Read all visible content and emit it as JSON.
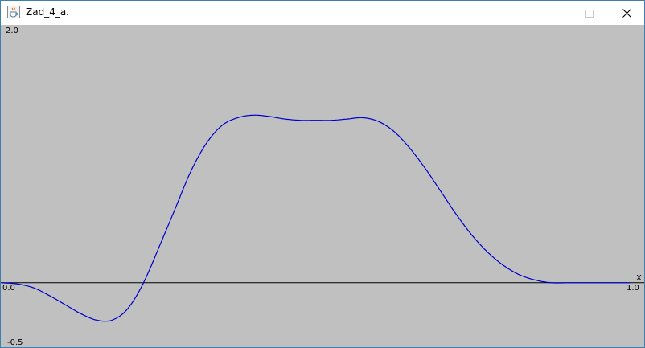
{
  "window": {
    "title": "Zad_4_a.",
    "icon": "java-cup-icon",
    "controls": [
      "minimize-icon",
      "maximize-icon",
      "close-icon"
    ]
  },
  "plot": {
    "background": "#c0c0c0",
    "axis_color": "#000000",
    "curve_color": "#0000cc",
    "labels": {
      "y_max": "2.0",
      "y_min": "-0.5",
      "x_min": "0.0",
      "x_max": "1.0",
      "x_axis": "X"
    }
  },
  "chart_data": {
    "type": "line",
    "xlim": [
      0.0,
      1.0
    ],
    "ylim": [
      -0.5,
      2.0
    ],
    "grid": false,
    "series": [
      {
        "x": [
          0.0,
          0.025,
          0.05,
          0.075,
          0.1,
          0.125,
          0.15,
          0.175,
          0.2,
          0.225,
          0.25,
          0.275,
          0.3,
          0.325,
          0.35,
          0.375,
          0.4,
          0.425,
          0.45,
          0.475,
          0.5,
          0.525,
          0.55,
          0.575,
          0.6,
          0.625,
          0.65,
          0.675,
          0.7,
          0.725,
          0.75,
          0.775,
          0.8,
          0.825,
          0.85,
          0.875,
          0.9,
          0.925,
          0.95,
          0.975,
          1.0
        ],
        "y": [
          0.0,
          -0.01,
          -0.04,
          -0.1,
          -0.17,
          -0.24,
          -0.29,
          -0.29,
          -0.2,
          0.0,
          0.28,
          0.57,
          0.86,
          1.08,
          1.22,
          1.28,
          1.3,
          1.29,
          1.27,
          1.26,
          1.26,
          1.26,
          1.27,
          1.28,
          1.25,
          1.17,
          1.04,
          0.88,
          0.7,
          0.52,
          0.36,
          0.23,
          0.13,
          0.06,
          0.02,
          0.0,
          0.0,
          0.0,
          0.0,
          0.0,
          0.0
        ]
      }
    ]
  }
}
